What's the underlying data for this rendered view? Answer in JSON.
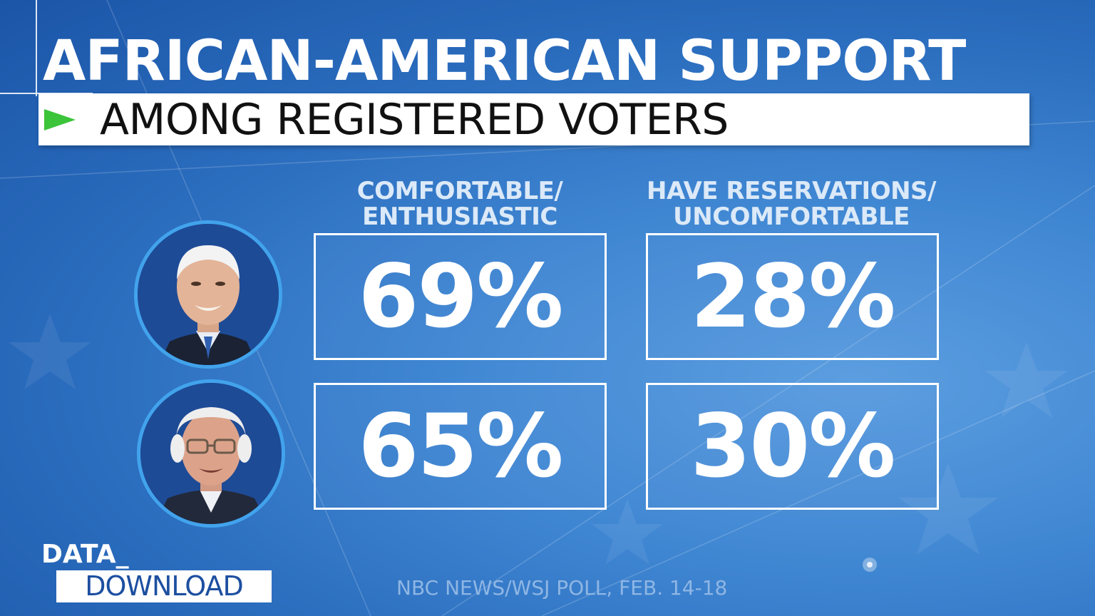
{
  "title": "AFRICAN-AMERICAN SUPPORT",
  "subtitle": "AMONG REGISTERED VOTERS",
  "chart_data": {
    "type": "table",
    "columns": [
      {
        "line1": "COMFORTABLE/",
        "line2": "ENTHUSIASTIC"
      },
      {
        "line1": "HAVE RESERVATIONS/",
        "line2": "UNCOMFORTABLE"
      }
    ],
    "rows": [
      {
        "values": [
          "69%",
          "28%"
        ]
      },
      {
        "values": [
          "65%",
          "30%"
        ]
      }
    ]
  },
  "brand": {
    "line1": "DATA_",
    "line2": "DOWNLOAD"
  },
  "source": "NBC NEWS/WSJ POLL, FEB. 14-18",
  "colors": {
    "background": "#2a6cbd",
    "accent_arrow": "#3cc43a",
    "avatar_ring": "#42a3ec"
  }
}
